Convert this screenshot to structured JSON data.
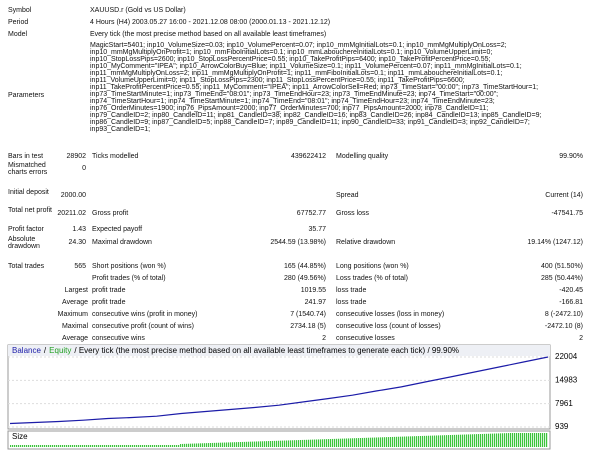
{
  "report": {
    "info": [
      {
        "label": "Symbol",
        "value": "XAUUSD.r (Gold vs US Dollar)"
      },
      {
        "label": "Period",
        "value": "4 Hours (H4) 2003.05.27 16:00 - 2021.12.08 08:00 (2000.01.13 - 2021.12.12)"
      },
      {
        "label": "Model",
        "value": "Every tick (the most precise method based on all available least timeframes)"
      }
    ],
    "parameters": {
      "label": "Parameters",
      "lines": [
        "MagicStart=5401; inp10_VolumeSize=0.03; inp10_VolumePercent=0.07; inp10_mmMgInitialLots=0.1; inp10_mmMgMultiplyOnLoss=2;",
        "inp10_mmMgMultiplyOnProfit=1; inp10_mmFiboInitialLots=0.1; inp10_mmLabouchereInitialLots=0.1; inp10_VolumeUpperLimit=0;",
        "inp10_StopLossPips=2600; inp10_StopLossPercentPrice=0.55; inp10_TakeProfitPips=6400; inp10_TakeProfitPercentPrice=0.55;",
        "inp10_MyComment=\"IPEA\"; inp10_ArrowColorBuy=Blue; inp11_VolumeSize=0.1; inp11_VolumePercent=0.07; inp11_mmMgInitialLots=0.1;",
        "inp11_mmMgMultiplyOnLoss=2; inp11_mmMgMultiplyOnProfit=1; inp11_mmFiboInitialLots=0.1; inp11_mmLabouchereInitialLots=0.1;",
        "inp11_VolumeUpperLimit=0; inp11_StopLossPips=2300; inp11_StopLossPercentPrice=0.55; inp11_TakeProfitPips=6600;",
        "inp11_TakeProfitPercentPrice=0.55; inp11_MyComment=\"IPEA\"; inp11_ArrowColorSell=Red; inp73_TimeStart=\"00:00\"; inp73_TimeStartHour=1;",
        "inp73_TimeStartMinute=1; inp73_TimeEnd=\"08:01\"; inp73_TimeEndHour=23; inp73_TimeEndMinute=23; inp74_TimeStart=\"00:00\";",
        "inp74_TimeStartHour=1; inp74_TimeStartMinute=1; inp74_TimeEnd=\"08:01\"; inp74_TimeEndHour=23; inp74_TimeEndMinute=23;",
        "inp76_OrderMinutes=1900; inp76_PipsAmount=2000; inp77_OrderMinutes=700; inp77_PipsAmount=2000; inp78_CandleID=11;",
        "inp79_CandleID=2; inp80_CandleID=11; inp81_CandleID=38; inp82_CandleID=16; inp83_CandleID=26; inp84_CandleID=13; inp85_CandleID=9;",
        "inp86_CandleID=9; inp87_CandleID=5; inp88_CandleID=7; inp89_CandleID=11; inp90_CandleID=33; inp91_CandleID=3; inp92_CandleID=7;",
        "inp93_CandleID=1;"
      ]
    },
    "stats": [
      {
        "label": "Bars in test",
        "value": "28902",
        "label2": "Ticks modelled",
        "value2": "439622412",
        "label3": "Modelling quality",
        "value3": "99.90%"
      },
      {
        "label": "Mismatched charts errors",
        "value": "0"
      },
      {
        "label": "Initial deposit",
        "value": "2000.00",
        "label3": "Spread",
        "value3": "Current (14)"
      },
      {
        "label": "Total net profit",
        "value": "20211.02",
        "label2": "Gross profit",
        "value2": "67752.77",
        "label3": "Gross loss",
        "value3": "-47541.75"
      },
      {
        "label": "Profit factor",
        "value": "1.43",
        "label2": "Expected payoff",
        "value2": "35.77"
      },
      {
        "label": "Absolute drawdown",
        "value": "24.30",
        "label2": "Maximal drawdown",
        "value2": "2544.59 (13.98%)",
        "label3": "Relative drawdown",
        "value3": "19.14% (1247.12)"
      },
      {
        "label": "Total trades",
        "value": "565",
        "label2": "Short positions (won %)",
        "value2": "165 (44.85%)",
        "label3": "Long positions (won %)",
        "value3": "400 (51.50%)"
      },
      {
        "label2": "Profit trades (% of total)",
        "value2": "280 (49.56%)",
        "label3": "Loss trades (% of total)",
        "value3": "285 (50.44%)"
      },
      {
        "sub": "Largest",
        "label2": "profit trade",
        "value2": "1019.55",
        "label3": "loss trade",
        "value3": "-420.45"
      },
      {
        "sub": "Average",
        "label2": "profit trade",
        "value2": "241.97",
        "label3": "loss trade",
        "value3": "-166.81"
      },
      {
        "sub": "Maximum",
        "label2": "consecutive wins (profit in money)",
        "value2": "7 (1540.74)",
        "label3": "consecutive losses (loss in money)",
        "value3": "8 (-2472.10)"
      },
      {
        "sub": "Maximal",
        "label2": "consecutive profit (count of wins)",
        "value2": "2734.18 (5)",
        "label3": "consecutive loss (count of losses)",
        "value3": "-2472.10 (8)"
      },
      {
        "sub": "Average",
        "label2": "consecutive wins",
        "value2": "2",
        "label3": "consecutive losses",
        "value3": "2"
      }
    ]
  },
  "chart_data": {
    "type": "line",
    "separator": "/",
    "title": "/ Every tick (the most precise method based on all available least timeframes to generate each tick) / 99.90%",
    "series": [
      {
        "name": "Balance",
        "color": "#1c1ca8",
        "values": [
          2000,
          2300,
          2600,
          3000,
          3500,
          3800,
          4200,
          5000,
          5600,
          6200,
          6800,
          7500,
          8500,
          9500,
          10500,
          11800,
          13000,
          14500,
          16000,
          17500,
          19000,
          20500,
          22000
        ]
      },
      {
        "name": "Equity",
        "color": "#22a022"
      }
    ],
    "ylim": [
      939,
      22004
    ],
    "yticks": [
      22004,
      14983,
      7961,
      939
    ],
    "grid": true,
    "volume_label": "Size"
  }
}
